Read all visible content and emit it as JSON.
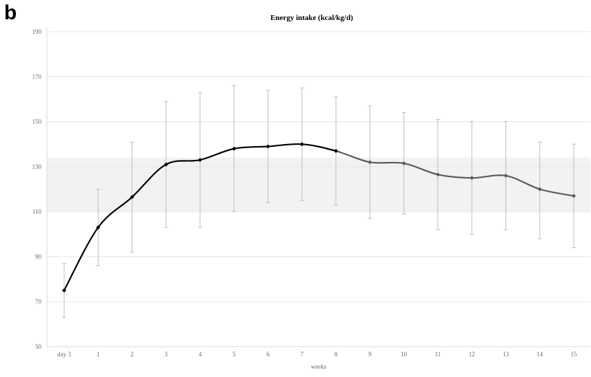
{
  "panel_label": "b",
  "chart_data": {
    "type": "line",
    "title": "Energy intake (kcal/kg/d)",
    "xlabel": "weeks",
    "ylabel": "",
    "categories": [
      "day 3",
      "1",
      "2",
      "3",
      "4",
      "5",
      "6",
      "7",
      "8",
      "9",
      "10",
      "11",
      "12",
      "13",
      "14",
      "15"
    ],
    "ylim": [
      50,
      190
    ],
    "yticks": [
      50,
      70,
      90,
      110,
      130,
      150,
      170,
      190
    ],
    "reference_band": [
      110,
      134
    ],
    "grid": true,
    "series": [
      {
        "values": [
          75,
          103,
          116.5,
          131,
          133,
          138,
          139,
          140,
          137,
          132,
          131.5,
          126.5,
          125,
          126,
          120,
          117
        ],
        "error_low": [
          63,
          86,
          92,
          103,
          103,
          110,
          114,
          115,
          113,
          107,
          109,
          102,
          100,
          102,
          98,
          94
        ],
        "error_high": [
          87,
          120,
          141,
          159,
          163,
          166,
          164,
          165,
          161,
          157,
          154,
          151,
          150,
          150,
          141,
          140
        ]
      }
    ],
    "colors": {
      "line_early": "#000000",
      "line_late": "#5a5a5a",
      "error_bar": "#bdbdbd",
      "grid": "#e6e6e6",
      "band": "#f2f2f2"
    }
  }
}
